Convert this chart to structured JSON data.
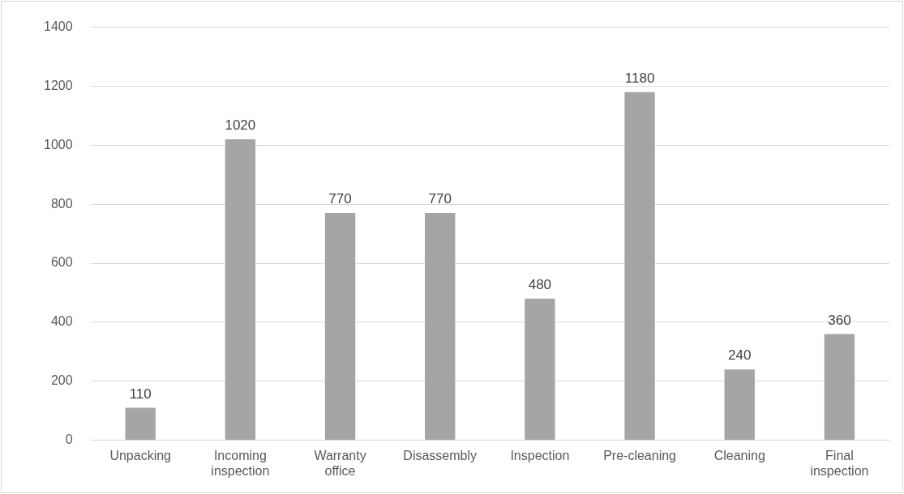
{
  "chart_data": {
    "type": "bar",
    "categories": [
      "Unpacking",
      "Incoming inspection",
      "Warranty office",
      "Disassembly",
      "Inspection",
      "Pre-cleaning",
      "Cleaning",
      "Final inspection"
    ],
    "values": [
      110,
      1020,
      770,
      770,
      480,
      1180,
      240,
      360
    ],
    "color": "#a5a5a5",
    "ylim": [
      0,
      1400
    ],
    "yticks": [
      0,
      200,
      400,
      600,
      800,
      1000,
      1200,
      1400
    ],
    "grid": "y",
    "data_labels": true,
    "legend": false
  }
}
